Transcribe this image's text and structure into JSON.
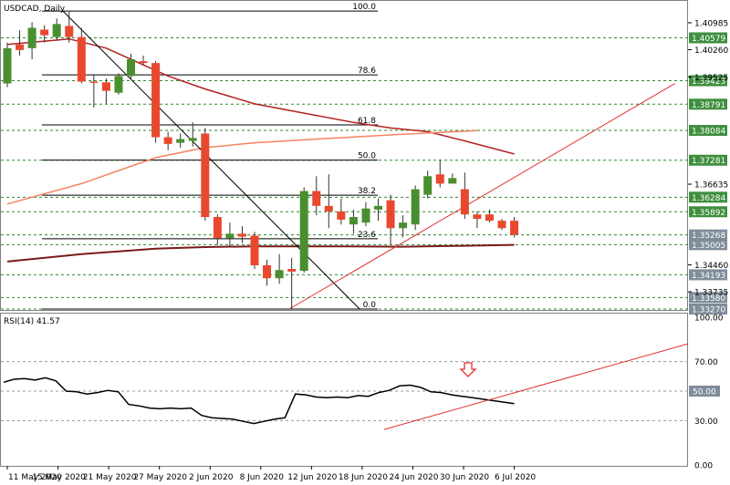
{
  "chart_data": {
    "type": "candlestick",
    "title": "USDCAD, Daily",
    "ylim": [
      1.3327,
      1.415
    ],
    "x_labels": [
      {
        "label": "11 May 2020",
        "index": 0
      },
      {
        "label": "15 May 2020",
        "index": 4
      },
      {
        "label": "21 May 2020",
        "index": 8
      },
      {
        "label": "27 May 2020",
        "index": 12
      },
      {
        "label": "2 Jun 2020",
        "index": 16
      },
      {
        "label": "8 Jun 2020",
        "index": 20
      },
      {
        "label": "12 Jun 2020",
        "index": 24
      },
      {
        "label": "18 Jun 2020",
        "index": 28
      },
      {
        "label": "24 Jun 2020",
        "index": 32
      },
      {
        "label": "30 Jun 2020",
        "index": 36
      },
      {
        "label": "6 Jul 2020",
        "index": 40
      }
    ],
    "price_ticks": [
      "1.40985",
      "1.40260",
      "1.39525",
      "1.36635",
      "1.34460",
      "1.33735"
    ],
    "level_badges": [
      {
        "label": "1.40579",
        "value": 1.40579
      },
      {
        "label": "1.39423",
        "value": 1.39423
      },
      {
        "label": "1.38791",
        "value": 1.38791
      },
      {
        "label": "1.38084",
        "value": 1.38084
      },
      {
        "label": "1.37281",
        "value": 1.37281
      },
      {
        "label": "1.36284",
        "value": 1.36284
      },
      {
        "label": "1.35892",
        "value": 1.35892
      },
      {
        "label": "1.35268",
        "value": 1.35268
      },
      {
        "label": "1.35005",
        "value": 1.35005
      },
      {
        "label": "1.34193",
        "value": 1.34193
      },
      {
        "label": "1.33580",
        "value": 1.3358
      },
      {
        "label": "1.33270",
        "value": 1.3327
      }
    ],
    "fibonacci": {
      "high": 1.413,
      "low": 1.3327,
      "levels": [
        {
          "label": "100.0",
          "value": 1.413
        },
        {
          "label": "78.6",
          "value": 1.39581
        },
        {
          "label": "61.8",
          "value": 1.38232
        },
        {
          "label": "50.0",
          "value": 1.37285
        },
        {
          "label": "38.2",
          "value": 1.36338
        },
        {
          "label": "23.6",
          "value": 1.35165
        },
        {
          "label": "0.0",
          "value": 1.3327
        }
      ]
    },
    "candles": [
      {
        "o": 1.3935,
        "h": 1.4045,
        "l": 1.3925,
        "c": 1.403
      },
      {
        "o": 1.404,
        "h": 1.4078,
        "l": 1.401,
        "c": 1.4025
      },
      {
        "o": 1.403,
        "h": 1.41,
        "l": 1.4,
        "c": 1.4085
      },
      {
        "o": 1.408,
        "h": 1.4092,
        "l": 1.4045,
        "c": 1.4065
      },
      {
        "o": 1.406,
        "h": 1.411,
        "l": 1.405,
        "c": 1.4095
      },
      {
        "o": 1.409,
        "h": 1.4128,
        "l": 1.4045,
        "c": 1.406
      },
      {
        "o": 1.406,
        "h": 1.4085,
        "l": 1.3935,
        "c": 1.394
      },
      {
        "o": 1.394,
        "h": 1.396,
        "l": 1.387,
        "c": 1.3938
      },
      {
        "o": 1.3938,
        "h": 1.3948,
        "l": 1.388,
        "c": 1.3915
      },
      {
        "o": 1.391,
        "h": 1.3962,
        "l": 1.3905,
        "c": 1.3955
      },
      {
        "o": 1.3955,
        "h": 1.4015,
        "l": 1.3945,
        "c": 1.4
      },
      {
        "o": 1.3995,
        "h": 1.401,
        "l": 1.3985,
        "c": 1.399
      },
      {
        "o": 1.399,
        "h": 1.3995,
        "l": 1.3775,
        "c": 1.379
      },
      {
        "o": 1.379,
        "h": 1.3805,
        "l": 1.3755,
        "c": 1.3772
      },
      {
        "o": 1.3775,
        "h": 1.38,
        "l": 1.3762,
        "c": 1.3785
      },
      {
        "o": 1.378,
        "h": 1.383,
        "l": 1.3765,
        "c": 1.3788
      },
      {
        "o": 1.38,
        "h": 1.3815,
        "l": 1.3565,
        "c": 1.3575
      },
      {
        "o": 1.3575,
        "h": 1.3582,
        "l": 1.35,
        "c": 1.3518
      },
      {
        "o": 1.3518,
        "h": 1.356,
        "l": 1.3495,
        "c": 1.353
      },
      {
        "o": 1.353,
        "h": 1.355,
        "l": 1.3505,
        "c": 1.3522
      },
      {
        "o": 1.3525,
        "h": 1.3535,
        "l": 1.3435,
        "c": 1.3445
      },
      {
        "o": 1.3445,
        "h": 1.346,
        "l": 1.339,
        "c": 1.341
      },
      {
        "o": 1.341,
        "h": 1.3475,
        "l": 1.3395,
        "c": 1.3432
      },
      {
        "o": 1.3435,
        "h": 1.3465,
        "l": 1.3327,
        "c": 1.3428
      },
      {
        "o": 1.343,
        "h": 1.3655,
        "l": 1.3425,
        "c": 1.3645
      },
      {
        "o": 1.3645,
        "h": 1.3685,
        "l": 1.358,
        "c": 1.3605
      },
      {
        "o": 1.3605,
        "h": 1.369,
        "l": 1.3545,
        "c": 1.359
      },
      {
        "o": 1.359,
        "h": 1.3625,
        "l": 1.3555,
        "c": 1.3568
      },
      {
        "o": 1.3555,
        "h": 1.3595,
        "l": 1.353,
        "c": 1.3575
      },
      {
        "o": 1.356,
        "h": 1.3615,
        "l": 1.355,
        "c": 1.3598
      },
      {
        "o": 1.3595,
        "h": 1.3625,
        "l": 1.3565,
        "c": 1.3605
      },
      {
        "o": 1.362,
        "h": 1.3635,
        "l": 1.35,
        "c": 1.3545
      },
      {
        "o": 1.3545,
        "h": 1.358,
        "l": 1.352,
        "c": 1.356
      },
      {
        "o": 1.3555,
        "h": 1.366,
        "l": 1.354,
        "c": 1.365
      },
      {
        "o": 1.3635,
        "h": 1.37,
        "l": 1.3625,
        "c": 1.3685
      },
      {
        "o": 1.369,
        "h": 1.373,
        "l": 1.3655,
        "c": 1.3665
      },
      {
        "o": 1.3665,
        "h": 1.3692,
        "l": 1.367,
        "c": 1.368
      },
      {
        "o": 1.365,
        "h": 1.3695,
        "l": 1.357,
        "c": 1.3582
      },
      {
        "o": 1.3582,
        "h": 1.359,
        "l": 1.3545,
        "c": 1.357
      },
      {
        "o": 1.3582,
        "h": 1.3595,
        "l": 1.356,
        "c": 1.3565
      },
      {
        "o": 1.3565,
        "h": 1.357,
        "l": 1.354,
        "c": 1.3545
      },
      {
        "o": 1.3565,
        "h": 1.3575,
        "l": 1.352,
        "c": 1.3527
      }
    ],
    "moving_averages": [
      {
        "color": "#b22222",
        "points": [
          [
            0,
            1.404
          ],
          [
            5,
            1.4055
          ],
          [
            8,
            1.403
          ],
          [
            10,
            1.4
          ],
          [
            13,
            1.3955
          ],
          [
            16,
            1.392
          ],
          [
            20,
            1.388
          ],
          [
            24,
            1.3855
          ],
          [
            28,
            1.383
          ],
          [
            31,
            1.3815
          ],
          [
            34,
            1.3805
          ],
          [
            37,
            1.378
          ],
          [
            41,
            1.3745
          ]
        ]
      },
      {
        "color": "#f4845f",
        "points": [
          [
            0,
            1.361
          ],
          [
            6,
            1.3665
          ],
          [
            12,
            1.3735
          ],
          [
            16,
            1.3762
          ],
          [
            20,
            1.3775
          ],
          [
            26,
            1.3787
          ],
          [
            32,
            1.3798
          ],
          [
            38,
            1.3808
          ]
        ]
      },
      {
        "color": "#7a1a1a",
        "points": [
          [
            0,
            1.3455
          ],
          [
            6,
            1.3475
          ],
          [
            12,
            1.349
          ],
          [
            16,
            1.3494
          ],
          [
            20,
            1.3496
          ],
          [
            26,
            1.3496
          ],
          [
            32,
            1.3495
          ],
          [
            36,
            1.3497
          ],
          [
            41,
            1.35
          ]
        ]
      }
    ],
    "trendlines": [
      {
        "color": "#000000",
        "from": [
          4.5,
          1.413
        ],
        "to": [
          28.5,
          1.3327
        ]
      },
      {
        "color": "#e03030",
        "from": [
          22.8,
          1.3327
        ],
        "to": [
          54,
          1.3935
        ]
      }
    ],
    "rsi": {
      "label": "RSI(14) 41.57",
      "ylim": [
        0,
        100
      ],
      "ticks": [
        "100.00",
        "70.00",
        "30.00",
        "0.00"
      ],
      "badge": "50.00",
      "levels": [
        70,
        50,
        30
      ],
      "values": [
        56,
        58,
        58.5,
        57.5,
        59,
        57,
        50,
        49.5,
        48,
        49,
        50.5,
        49.5,
        41,
        40,
        38.5,
        38,
        38.5,
        38,
        38.5,
        33.5,
        32,
        31.5,
        31,
        29.5,
        28,
        29.5,
        31,
        32,
        48,
        47.5,
        46,
        45.5,
        46,
        45.5,
        47,
        46.5,
        49,
        50.5,
        53.5,
        54,
        52.5,
        49.5,
        49,
        47.5,
        46.5,
        45.5,
        44.5,
        43.5,
        42.5,
        41.57
      ],
      "trendline": {
        "from": [
          36.5,
          24
        ],
        "to": [
          110,
          82
        ]
      },
      "arrow_index": 69
    }
  }
}
